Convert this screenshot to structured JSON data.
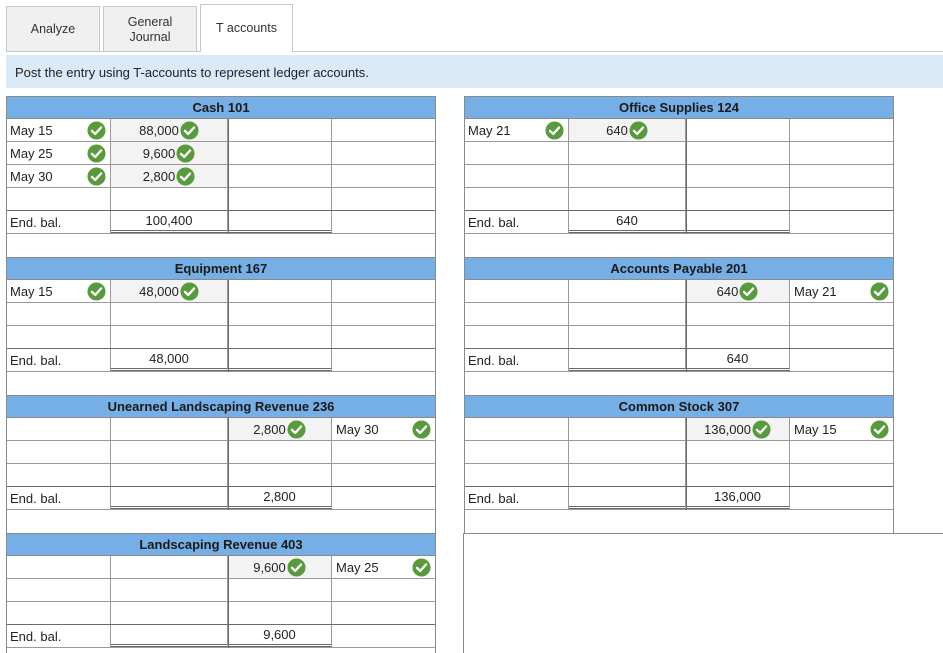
{
  "tabs": [
    {
      "label": "Analyze"
    },
    {
      "label": "General\nJournal"
    },
    {
      "label": "T accounts"
    }
  ],
  "instruction": "Post the entry using T-accounts to represent ledger accounts.",
  "colors": {
    "check_green": "#5a9a3e",
    "header_blue": "#76aee6",
    "instruction_bg": "#dbeaf7"
  },
  "accounts": [
    {
      "title": "Cash 101",
      "rows": [
        {
          "ld": "May 15",
          "ldchk": true,
          "la": "88,000",
          "lachk": true,
          "ra": "",
          "rachk": false,
          "rd": "",
          "rdchk": false
        },
        {
          "ld": "May 25",
          "ldchk": true,
          "la": "9,600",
          "lachk": true,
          "ra": "",
          "rachk": false,
          "rd": "",
          "rdchk": false
        },
        {
          "ld": "May 30",
          "ldchk": true,
          "la": "2,800",
          "lachk": true,
          "ra": "",
          "rachk": false,
          "rd": "",
          "rdchk": false
        },
        {
          "ld": "",
          "ldchk": false,
          "la": "",
          "lachk": false,
          "ra": "",
          "rachk": false,
          "rd": "",
          "rdchk": false
        }
      ],
      "end": {
        "label": "End. bal.",
        "la": "100,400",
        "ra": "",
        "rd": ""
      }
    },
    {
      "title": "Office Supplies 124",
      "rows": [
        {
          "ld": "May 21",
          "ldchk": true,
          "la": "640",
          "lachk": true,
          "ra": "",
          "rachk": false,
          "rd": "",
          "rdchk": false
        },
        {
          "ld": "",
          "ldchk": false,
          "la": "",
          "lachk": false,
          "ra": "",
          "rachk": false,
          "rd": "",
          "rdchk": false
        },
        {
          "ld": "",
          "ldchk": false,
          "la": "",
          "lachk": false,
          "ra": "",
          "rachk": false,
          "rd": "",
          "rdchk": false
        },
        {
          "ld": "",
          "ldchk": false,
          "la": "",
          "lachk": false,
          "ra": "",
          "rachk": false,
          "rd": "",
          "rdchk": false
        }
      ],
      "end": {
        "label": "End. bal.",
        "la": "640",
        "ra": "",
        "rd": ""
      }
    },
    {
      "title": "Equipment 167",
      "rows": [
        {
          "ld": "May 15",
          "ldchk": true,
          "la": "48,000",
          "lachk": true,
          "ra": "",
          "rachk": false,
          "rd": "",
          "rdchk": false
        },
        {
          "ld": "",
          "ldchk": false,
          "la": "",
          "lachk": false,
          "ra": "",
          "rachk": false,
          "rd": "",
          "rdchk": false
        },
        {
          "ld": "",
          "ldchk": false,
          "la": "",
          "lachk": false,
          "ra": "",
          "rachk": false,
          "rd": "",
          "rdchk": false
        }
      ],
      "end": {
        "label": "End. bal.",
        "la": "48,000",
        "ra": "",
        "rd": ""
      }
    },
    {
      "title": "Accounts Payable 201",
      "rows": [
        {
          "ld": "",
          "ldchk": false,
          "la": "",
          "lachk": false,
          "ra": "640",
          "rachk": true,
          "rd": "May 21",
          "rdchk": true
        },
        {
          "ld": "",
          "ldchk": false,
          "la": "",
          "lachk": false,
          "ra": "",
          "rachk": false,
          "rd": "",
          "rdchk": false
        },
        {
          "ld": "",
          "ldchk": false,
          "la": "",
          "lachk": false,
          "ra": "",
          "rachk": false,
          "rd": "",
          "rdchk": false
        }
      ],
      "end": {
        "label": "End. bal.",
        "la": "",
        "ra": "640",
        "rd": ""
      }
    },
    {
      "title": "Unearned Landscaping Revenue 236",
      "rows": [
        {
          "ld": "",
          "ldchk": false,
          "la": "",
          "lachk": false,
          "ra": "2,800",
          "rachk": true,
          "rd": "May 30",
          "rdchk": true
        },
        {
          "ld": "",
          "ldchk": false,
          "la": "",
          "lachk": false,
          "ra": "",
          "rachk": false,
          "rd": "",
          "rdchk": false
        },
        {
          "ld": "",
          "ldchk": false,
          "la": "",
          "lachk": false,
          "ra": "",
          "rachk": false,
          "rd": "",
          "rdchk": false
        }
      ],
      "end": {
        "label": "End. bal.",
        "la": "",
        "ra": "2,800",
        "rd": ""
      }
    },
    {
      "title": "Common Stock 307",
      "rows": [
        {
          "ld": "",
          "ldchk": false,
          "la": "",
          "lachk": false,
          "ra": "136,000",
          "rachk": true,
          "rd": "May 15",
          "rdchk": true
        },
        {
          "ld": "",
          "ldchk": false,
          "la": "",
          "lachk": false,
          "ra": "",
          "rachk": false,
          "rd": "",
          "rdchk": false
        },
        {
          "ld": "",
          "ldchk": false,
          "la": "",
          "lachk": false,
          "ra": "",
          "rachk": false,
          "rd": "",
          "rdchk": false
        }
      ],
      "end": {
        "label": "End. bal.",
        "la": "",
        "ra": "136,000",
        "rd": ""
      }
    },
    {
      "title": "Landscaping Revenue 403",
      "rows": [
        {
          "ld": "",
          "ldchk": false,
          "la": "",
          "lachk": false,
          "ra": "9,600",
          "rachk": true,
          "rd": "May 25",
          "rdchk": true
        },
        {
          "ld": "",
          "ldchk": false,
          "la": "",
          "lachk": false,
          "ra": "",
          "rachk": false,
          "rd": "",
          "rdchk": false
        },
        {
          "ld": "",
          "ldchk": false,
          "la": "",
          "lachk": false,
          "ra": "",
          "rachk": false,
          "rd": "",
          "rdchk": false
        }
      ],
      "end": {
        "label": "End. bal.",
        "la": "",
        "ra": "9,600",
        "rd": ""
      }
    }
  ]
}
